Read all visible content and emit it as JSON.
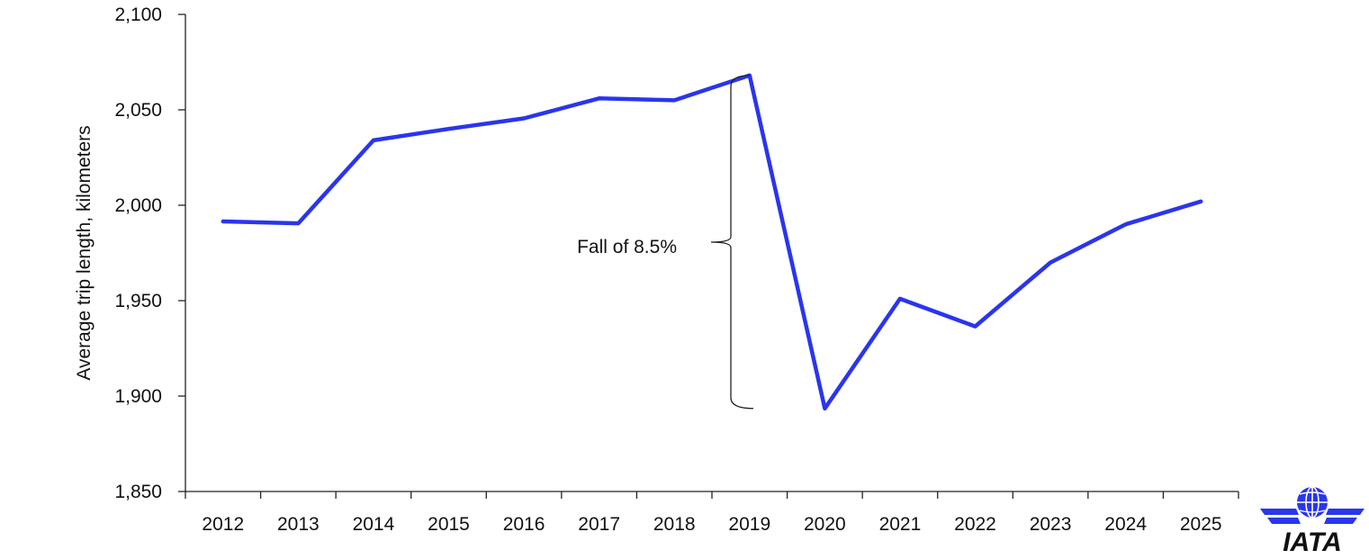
{
  "chart_data": {
    "type": "line",
    "x": [
      "2012",
      "2013",
      "2014",
      "2015",
      "2016",
      "2017",
      "2018",
      "2019",
      "2020",
      "2021",
      "2022",
      "2023",
      "2024",
      "2025"
    ],
    "series": [
      {
        "values": [
          1991.5,
          1990.5,
          2034,
          2040,
          2045.5,
          2056,
          2055,
          2068,
          1893.5,
          1951,
          1936.5,
          1970,
          1990,
          2002
        ]
      }
    ],
    "ylim": [
      1850,
      2100
    ],
    "yticks": [
      {
        "value": 1850,
        "label": "1,850"
      },
      {
        "value": 1900,
        "label": "1,900"
      },
      {
        "value": 1950,
        "label": "1,950"
      },
      {
        "value": 2000,
        "label": "2,000"
      },
      {
        "value": 2050,
        "label": "2,050"
      },
      {
        "value": 2100,
        "label": "2,100"
      }
    ],
    "xlabel": "",
    "ylabel": "Average trip length, kilometers",
    "title": "",
    "grid": false,
    "line_color": "#2a35ee",
    "annotation": {
      "text": "Fall of 8.5%",
      "from_value": 2068,
      "to_value": 1893.5
    }
  },
  "logo": {
    "text": "IATA",
    "color": "#2a35ee"
  }
}
